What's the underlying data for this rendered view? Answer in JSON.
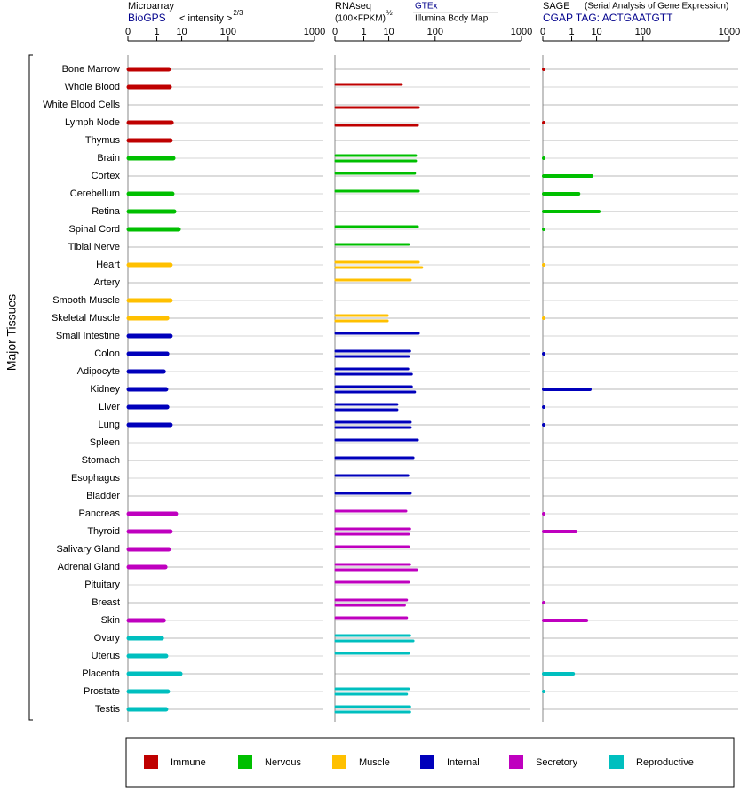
{
  "chart_data": {
    "type": "bar",
    "y_label": "Major Tissues",
    "groups": [
      {
        "name": "Immune",
        "color": "#bf0000",
        "tissues": [
          "Bone Marrow",
          "Whole Blood",
          "White Blood Cells",
          "Lymph Node",
          "Thymus"
        ]
      },
      {
        "name": "Nervous",
        "color": "#00bf00",
        "tissues": [
          "Brain",
          "Cortex",
          "Cerebellum",
          "Retina",
          "Spinal Cord",
          "Tibial Nerve"
        ]
      },
      {
        "name": "Muscle",
        "color": "#ffc000",
        "tissues": [
          "Heart",
          "Artery",
          "Smooth Muscle",
          "Skeletal Muscle"
        ]
      },
      {
        "name": "Internal",
        "color": "#0000bb",
        "tissues": [
          "Small Intestine",
          "Colon",
          "Adipocyte",
          "Kidney",
          "Liver",
          "Lung",
          "Spleen",
          "Stomach",
          "Esophagus",
          "Bladder"
        ]
      },
      {
        "name": "Secretory",
        "color": "#bf00bf",
        "tissues": [
          "Pancreas",
          "Thyroid",
          "Salivary Gland",
          "Adrenal Gland",
          "Pituitary",
          "Breast",
          "Skin"
        ]
      },
      {
        "name": "Reproductive",
        "color": "#00bfbf",
        "tissues": [
          "Ovary",
          "Uterus",
          "Placenta",
          "Prostate",
          "Testis"
        ]
      }
    ],
    "panels": [
      {
        "title": "Microarray",
        "subtitle": "BioGPS",
        "axis_label": "< intensity >",
        "axis_exponent": "2/3",
        "xlim": [
          0,
          1000
        ],
        "xticks": [
          0,
          1,
          10,
          100,
          1000
        ],
        "series": [
          {
            "values": [
              3.6,
              3.9,
              null,
              4.6,
              4.2,
              5.3,
              null,
              4.9,
              5.7,
              8.0,
              null,
              4.2,
              null,
              4.2,
              3.1,
              4.2,
              3.1,
              2.2,
              2.8,
              3.1,
              4.2,
              null,
              null,
              null,
              null,
              6.5,
              4.2,
              3.6,
              2.6,
              null,
              null,
              2.2,
              1.8,
              2.8,
              9.1,
              3.3,
              2.8
            ]
          }
        ]
      },
      {
        "title": "RNAseq",
        "axis_label": "(100×FPKM)",
        "axis_exponent": "½",
        "xlim": [
          0,
          1000
        ],
        "xticks": [
          0,
          1,
          10,
          100,
          1000
        ],
        "series": [
          {
            "name": "GTEx",
            "values": [
              null,
              22,
              null,
              null,
              null,
              45,
              43,
              51,
              null,
              49,
              32,
              51,
              35,
              null,
              9.1,
              51,
              34,
              31,
              37,
              17,
              35,
              49,
              40,
              31,
              35,
              28,
              34,
              32,
              34,
              32,
              29,
              29,
              34,
              32,
              null,
              32,
              34
            ]
          },
          {
            "name": "Illumina Body Map",
            "values": [
              null,
              null,
              51,
              49,
              null,
              45,
              null,
              null,
              null,
              null,
              null,
              59,
              null,
              null,
              9.1,
              null,
              32,
              37,
              43,
              17,
              35,
              null,
              null,
              null,
              null,
              null,
              32,
              null,
              47,
              null,
              26,
              null,
              40,
              null,
              null,
              29,
              34
            ]
          }
        ]
      },
      {
        "title": "SAGE",
        "note": "(Serial Analysis of Gene Expression)",
        "subtitle": "CGAP TAG: ACTGAATGTT",
        "xlim": [
          0,
          1000
        ],
        "xticks": [
          0,
          1,
          10,
          100,
          1000
        ],
        "series": [
          {
            "values": [
              0,
              null,
              null,
              0,
              null,
              0,
              7.0,
              2.2,
              11.6,
              0,
              null,
              0,
              null,
              null,
              0,
              null,
              0,
              null,
              6.1,
              0,
              0,
              null,
              null,
              null,
              null,
              0,
              1.6,
              null,
              null,
              null,
              0,
              4.6,
              null,
              null,
              1.2,
              0,
              null
            ]
          }
        ]
      }
    ]
  }
}
